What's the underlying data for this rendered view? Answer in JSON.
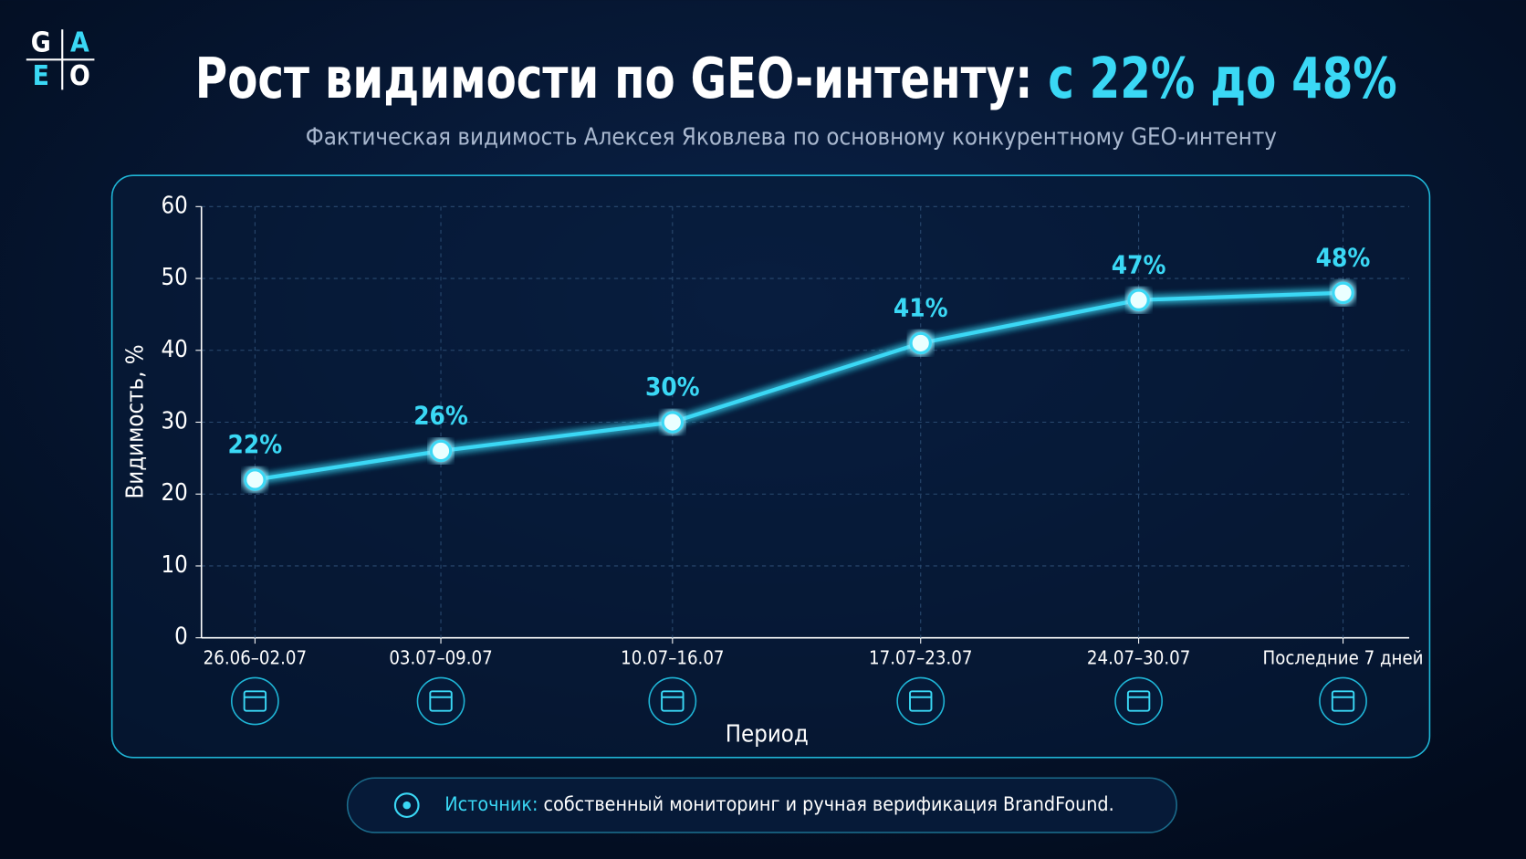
{
  "logo": {
    "letters": [
      "G",
      "A",
      "E",
      "O"
    ]
  },
  "chart_data": {
    "type": "line",
    "title": {
      "main": "Рост видимости по GEO-интенту:",
      "highlight": "с 22% до 48%"
    },
    "subtitle": "Фактическая видимость Алексея Яковлева по основному конкурентному GEO-интенту",
    "categories": [
      "26.06–02.07",
      "03.07–09.07",
      "10.07–16.07",
      "17.07–23.07",
      "24.07–30.07",
      "Последние 7 дней"
    ],
    "values": [
      22,
      26,
      30,
      41,
      47,
      48
    ],
    "value_labels": [
      "22%",
      "26%",
      "30%",
      "41%",
      "47%",
      "48%"
    ],
    "color": "#3ad8f5",
    "ylim": [
      0,
      60
    ],
    "yticks": [
      0,
      10,
      20,
      30,
      40,
      50,
      60
    ],
    "grid": true,
    "y_label": "Видимость, %",
    "x_label": "Период"
  },
  "source": {
    "label": "Источник:",
    "text": "собственный мониторинг и ручная верификация BrandFound."
  }
}
